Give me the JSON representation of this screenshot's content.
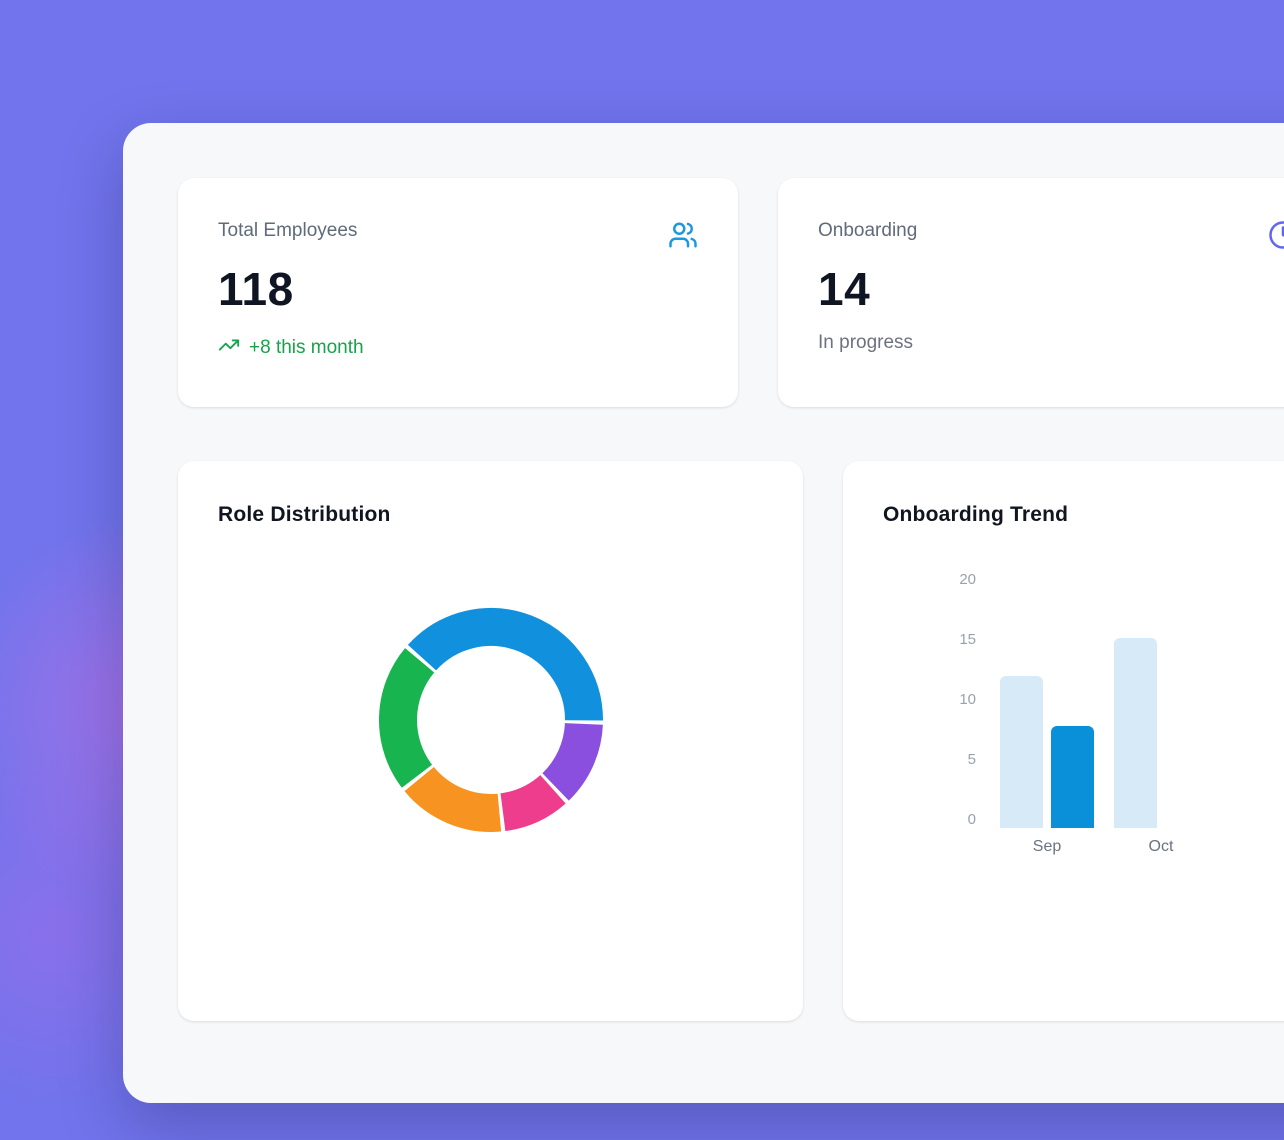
{
  "theme": {
    "background": "#7174ec",
    "panel": "#f7f8fa",
    "card": "#ffffff",
    "stat_icon_blue": "#1b98e0",
    "stat_icon_indigo": "#6366f1",
    "positive_green": "#16a34a"
  },
  "stat_cards": [
    {
      "label": "Total Employees",
      "value": "118",
      "trend": "+8 this month",
      "icon": "users-icon"
    },
    {
      "label": "Onboarding",
      "value": "14",
      "subtext": "In progress",
      "icon": "clock-icon"
    }
  ],
  "chart_cards": [
    {
      "title": "Role Distribution"
    },
    {
      "title": "Onboarding Trend"
    }
  ],
  "chart_data": [
    {
      "type": "pie",
      "style": "donut",
      "title": "Role Distribution",
      "labels_visible": false,
      "start_angle_deg": -49,
      "total": 118,
      "segments": [
        {
          "name": "blue",
          "color": "#1191dd",
          "value": 46
        },
        {
          "name": "purple",
          "color": "#8b4fe0",
          "value": 15
        },
        {
          "name": "pink",
          "color": "#ee3d8d",
          "value": 12
        },
        {
          "name": "orange",
          "color": "#f79421",
          "value": 19
        },
        {
          "name": "green",
          "color": "#17b450",
          "value": 26
        }
      ]
    },
    {
      "type": "bar",
      "title": "Onboarding Trend",
      "categories": [
        "Sep",
        "Oct"
      ],
      "series": [
        {
          "name": "series-light",
          "color": "#d6eaf8",
          "values": [
            12,
            15
          ]
        },
        {
          "name": "series-dark",
          "color": "#0a90d9",
          "values": [
            8,
            null
          ]
        }
      ],
      "yticks": [
        20,
        15,
        10,
        5,
        0
      ],
      "ylim": [
        0,
        20
      ],
      "grid": false,
      "legend": false
    }
  ]
}
